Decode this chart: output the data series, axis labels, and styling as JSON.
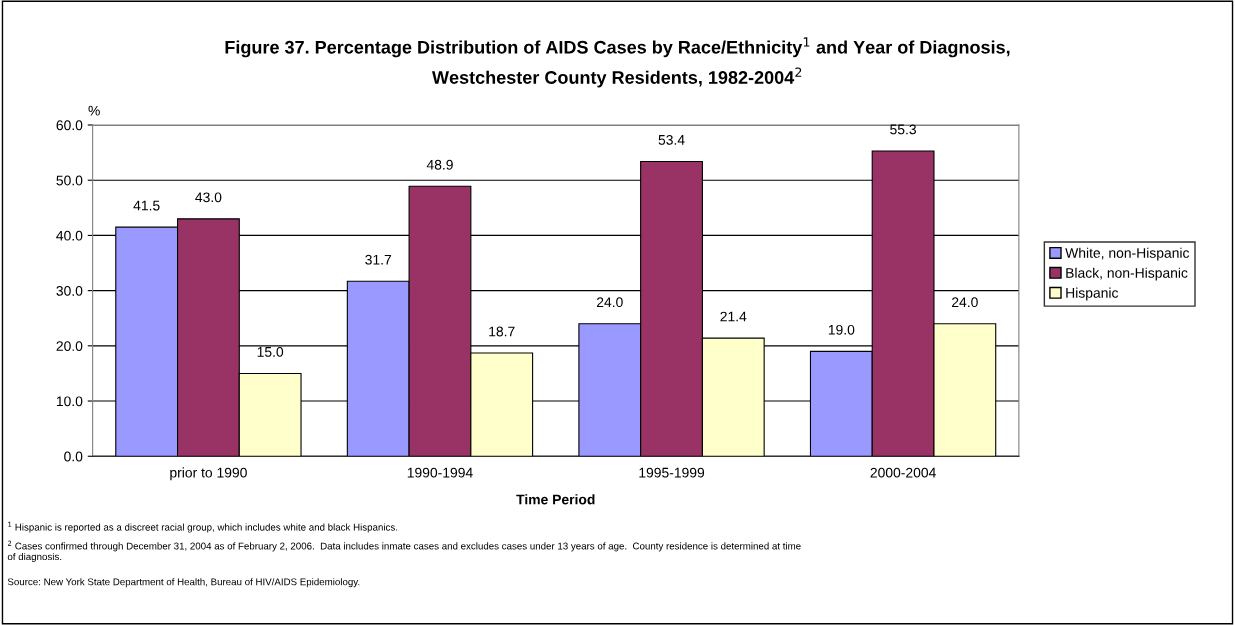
{
  "chart_data": {
    "type": "bar",
    "title": "Figure 37. Percentage Distribution of AIDS Cases by Race/Ethnicity$^{1}$ and Year of Diagnosis,\nWestchester County Residents, 1982-2004$^{2}$",
    "xlabel": "Time Period",
    "ylabel": "%",
    "categories": [
      "prior to 1990",
      "1990-1994",
      "1995-1999",
      "2000-2004"
    ],
    "series": [
      {
        "name": "White, non-Hispanic",
        "color": "#9999ff",
        "values": [
          41.5,
          31.7,
          24.0,
          19.0
        ],
        "value_labels": [
          "41.5",
          "31.7",
          "24.0",
          "19.0"
        ]
      },
      {
        "name": "Black, non-Hispanic",
        "color": "#993366",
        "values": [
          43.0,
          48.9,
          53.4,
          55.3
        ],
        "value_labels": [
          "43.0",
          "48.9",
          "53.4",
          "55.3"
        ]
      },
      {
        "name": "Hispanic",
        "color": "#ffffcc",
        "values": [
          15.0,
          18.7,
          21.4,
          24.0
        ],
        "value_labels": [
          "15.0",
          "18.7",
          "21.4",
          "24.0"
        ]
      }
    ],
    "ylim": [
      0,
      60
    ],
    "yticks": [
      {
        "value": 0,
        "label": "0.0"
      },
      {
        "value": 10,
        "label": "10.0"
      },
      {
        "value": 20,
        "label": "20.0"
      },
      {
        "value": 30,
        "label": "30.0"
      },
      {
        "value": 40,
        "label": "40.0"
      },
      {
        "value": 50,
        "label": "50.0"
      },
      {
        "value": 60,
        "label": "60.0"
      }
    ],
    "grid": "y",
    "legend": "right",
    "annotations": [
      "$^{1}$ Hispanic is reported as a discreet racial group, which includes white and black Hispanics.",
      "$^{2}$ Cases confirmed through December 31, 2004 as of February 2, 2006.  Data includes inmate cases and excludes cases under 13 years of age.  County residence is determined at time\nof diagnosis.",
      "Source: New York State Department of Health, Bureau of HIV/AIDS Epidemiology."
    ]
  }
}
